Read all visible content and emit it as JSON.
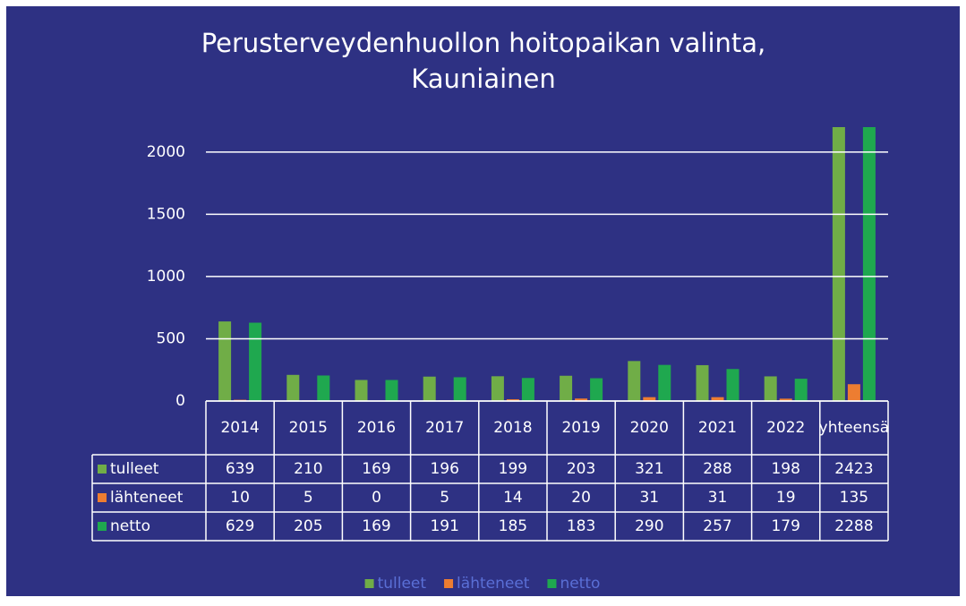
{
  "chart_data": {
    "type": "bar",
    "title": "Perusterveydenhuollon hoitopaikan valinta, Kauniainen",
    "categories": [
      "2014",
      "2015",
      "2016",
      "2017",
      "2018",
      "2019",
      "2020",
      "2021",
      "2022",
      "yhteensä"
    ],
    "series": [
      {
        "name": "tulleet",
        "color": "#70ad47",
        "values": [
          639,
          210,
          169,
          196,
          199,
          203,
          321,
          288,
          198,
          2423
        ]
      },
      {
        "name": "lähteneet",
        "color": "#ed7d31",
        "values": [
          10,
          5,
          0,
          5,
          14,
          20,
          31,
          31,
          19,
          135
        ]
      },
      {
        "name": "netto",
        "color": "#1fa84f",
        "values": [
          629,
          205,
          169,
          191,
          185,
          183,
          290,
          257,
          179,
          2288
        ]
      }
    ],
    "ylim": [
      0,
      2200
    ],
    "yticks": [
      0,
      500,
      1000,
      1500,
      2000
    ],
    "grid": true,
    "legend": "bottom"
  }
}
